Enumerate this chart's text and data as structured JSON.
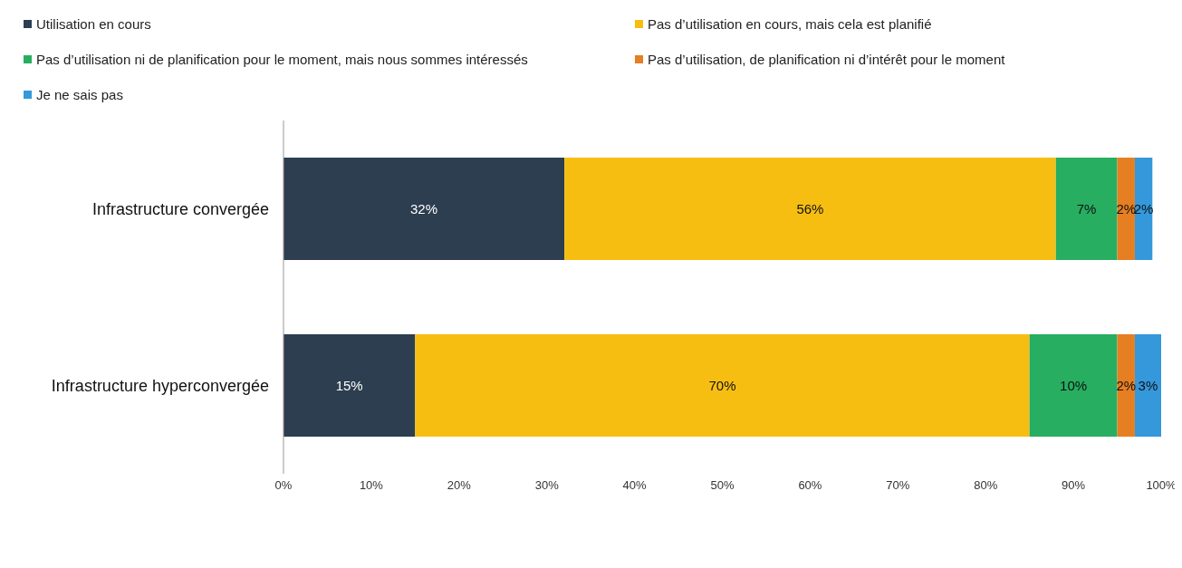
{
  "chart_data": {
    "type": "bar",
    "orientation": "horizontal",
    "stacked": true,
    "categories": [
      "Infrastructure convergée",
      "Infrastructure hyperconvergée"
    ],
    "series": [
      {
        "name": "Utilisation en cours",
        "color": "#2c3e50",
        "values": [
          32,
          15
        ],
        "value_labels": [
          "32%",
          "15%"
        ]
      },
      {
        "name": "Pas d’utilisation en cours, mais cela est planifié",
        "color": "#f7be12",
        "values": [
          56,
          70
        ],
        "value_labels": [
          "56%",
          "70%"
        ]
      },
      {
        "name": "Pas d’utilisation ni de planification pour le moment, mais nous sommes intéressés",
        "color": "#27ae60",
        "values": [
          7,
          10
        ],
        "value_labels": [
          "7%",
          "10%"
        ]
      },
      {
        "name": "Pas d’utilisation, de planification ni d’intérêt pour le moment",
        "color": "#e67e22",
        "values": [
          2,
          2
        ],
        "value_labels": [
          "2%",
          "2%"
        ]
      },
      {
        "name": "Je ne sais pas",
        "color": "#3498db",
        "values": [
          2,
          3
        ],
        "value_labels": [
          "2%",
          "3%"
        ]
      }
    ],
    "xlim": [
      0,
      100
    ],
    "xticks": [
      {
        "value": 0,
        "label": "0%"
      },
      {
        "value": 10,
        "label": "10%"
      },
      {
        "value": 20,
        "label": "20%"
      },
      {
        "value": 30,
        "label": "30%"
      },
      {
        "value": 40,
        "label": "40%"
      },
      {
        "value": 50,
        "label": "50%"
      },
      {
        "value": 60,
        "label": "60%"
      },
      {
        "value": 70,
        "label": "70%"
      },
      {
        "value": 80,
        "label": "80%"
      },
      {
        "value": 90,
        "label": "90%"
      },
      {
        "value": 100,
        "label": "100%"
      }
    ],
    "legend": "top"
  }
}
